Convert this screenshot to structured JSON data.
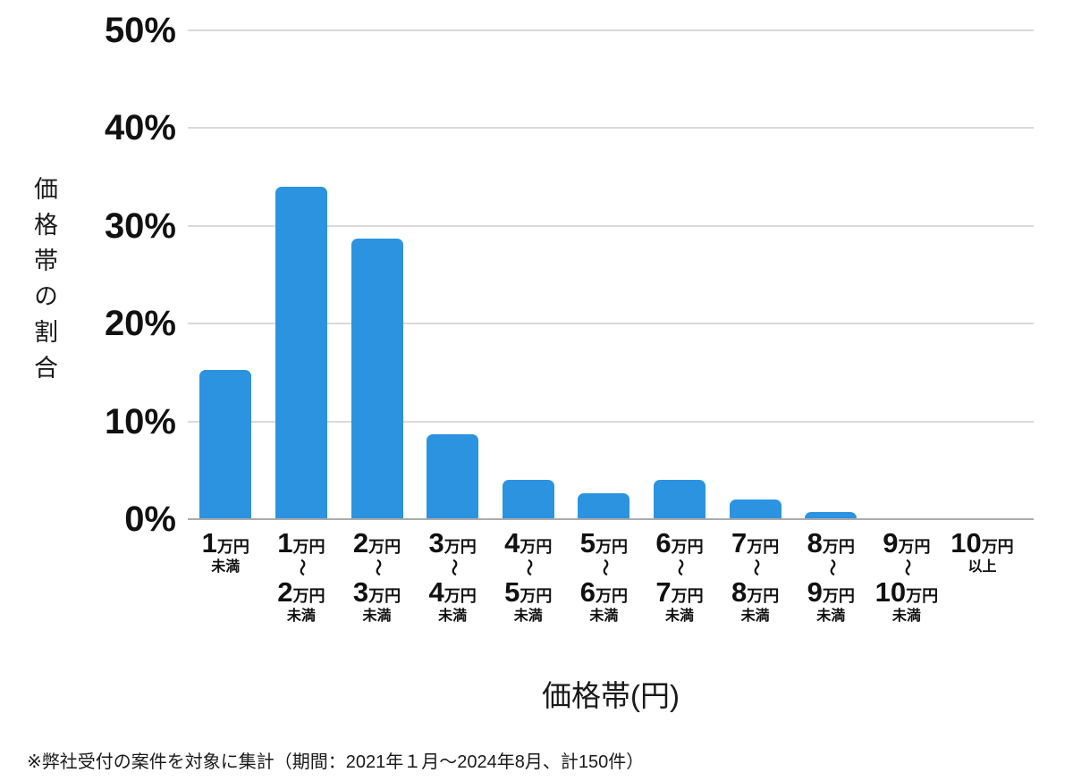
{
  "chart_data": {
    "type": "bar",
    "title": "",
    "xlabel": "価格帯(円)",
    "ylabel": "価格帯の割合",
    "ylim": [
      0,
      50
    ],
    "grid": true,
    "bar_color": "#2b93e0",
    "gridline_color": "#dadada",
    "axis_line_color": "#ababab",
    "yticks": [
      {
        "value": 0,
        "label": "0%"
      },
      {
        "value": 10,
        "label": "10%"
      },
      {
        "value": 20,
        "label": "20%"
      },
      {
        "value": 30,
        "label": "30%"
      },
      {
        "value": 40,
        "label": "40%"
      },
      {
        "value": 50,
        "label": "50%"
      }
    ],
    "categories": [
      {
        "top": "1",
        "top_unit": "万円",
        "tilde": "",
        "bottom": "",
        "bottom_unit": "",
        "suffix": "未満"
      },
      {
        "top": "1",
        "top_unit": "万円",
        "tilde": "〜",
        "bottom": "2",
        "bottom_unit": "万円",
        "suffix": "未満"
      },
      {
        "top": "2",
        "top_unit": "万円",
        "tilde": "〜",
        "bottom": "3",
        "bottom_unit": "万円",
        "suffix": "未満"
      },
      {
        "top": "3",
        "top_unit": "万円",
        "tilde": "〜",
        "bottom": "4",
        "bottom_unit": "万円",
        "suffix": "未満"
      },
      {
        "top": "4",
        "top_unit": "万円",
        "tilde": "〜",
        "bottom": "5",
        "bottom_unit": "万円",
        "suffix": "未満"
      },
      {
        "top": "5",
        "top_unit": "万円",
        "tilde": "〜",
        "bottom": "6",
        "bottom_unit": "万円",
        "suffix": "未満"
      },
      {
        "top": "6",
        "top_unit": "万円",
        "tilde": "〜",
        "bottom": "7",
        "bottom_unit": "万円",
        "suffix": "未満"
      },
      {
        "top": "7",
        "top_unit": "万円",
        "tilde": "〜",
        "bottom": "8",
        "bottom_unit": "万円",
        "suffix": "未満"
      },
      {
        "top": "8",
        "top_unit": "万円",
        "tilde": "〜",
        "bottom": "9",
        "bottom_unit": "万円",
        "suffix": "未満"
      },
      {
        "top": "9",
        "top_unit": "万円",
        "tilde": "〜",
        "bottom": "10",
        "bottom_unit": "万円",
        "suffix": "未満"
      },
      {
        "top": "10",
        "top_unit": "万円",
        "tilde": "",
        "bottom": "",
        "bottom_unit": "",
        "suffix": "以上"
      }
    ],
    "values": [
      15.3,
      34,
      28.7,
      8.7,
      4,
      2.7,
      4,
      2,
      0.7,
      0,
      0
    ],
    "footnote": "※弊社受付の案件を対象に集計（期間：2021年１月〜2024年8月、計150件）"
  }
}
